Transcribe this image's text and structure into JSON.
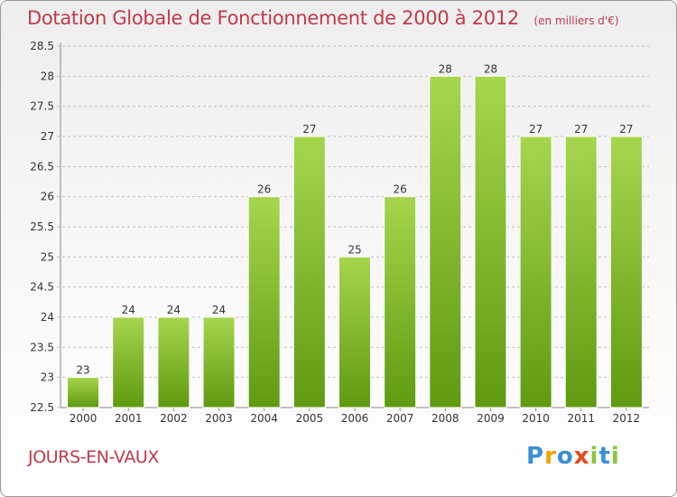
{
  "header": {
    "title": "Dotation Globale de Fonctionnement de 2000 à 2012",
    "subtitle": "(en milliers d'€)"
  },
  "footer": {
    "commune": "JOURS-EN-VAUX",
    "logo_letters": [
      "P",
      "r",
      "o",
      "x",
      "i",
      "t",
      "i"
    ],
    "logo_colors": [
      "#3a8fd6",
      "#f2a400",
      "#3a8fd6",
      "#e8491d",
      "#8cc43c",
      "#3a8fd6",
      "#8cc43c"
    ]
  },
  "colors": {
    "bar_light": "#a6d64e",
    "bar_dark": "#5f9a10",
    "grid": "#bdbdbd",
    "axis_text": "#333333"
  },
  "chart_data": {
    "type": "bar",
    "categories": [
      "2000",
      "2001",
      "2002",
      "2003",
      "2004",
      "2005",
      "2006",
      "2007",
      "2008",
      "2009",
      "2010",
      "2011",
      "2012"
    ],
    "values": [
      23,
      24,
      24,
      24,
      26,
      27,
      25,
      26,
      28,
      28,
      27,
      27,
      27
    ],
    "data_labels": [
      "23",
      "24",
      "24",
      "24",
      "26",
      "27",
      "25",
      "26",
      "28",
      "28",
      "27",
      "27",
      "27"
    ],
    "yticks": [
      "22.5",
      "23",
      "23.5",
      "24",
      "24.5",
      "25",
      "25.5",
      "26",
      "26.5",
      "27",
      "27.5",
      "28",
      "28.5"
    ],
    "ylim": [
      22.5,
      28.5
    ],
    "grid": true,
    "title": "Dotation Globale de Fonctionnement de 2000 à 2012",
    "xlabel": "",
    "ylabel": ""
  }
}
